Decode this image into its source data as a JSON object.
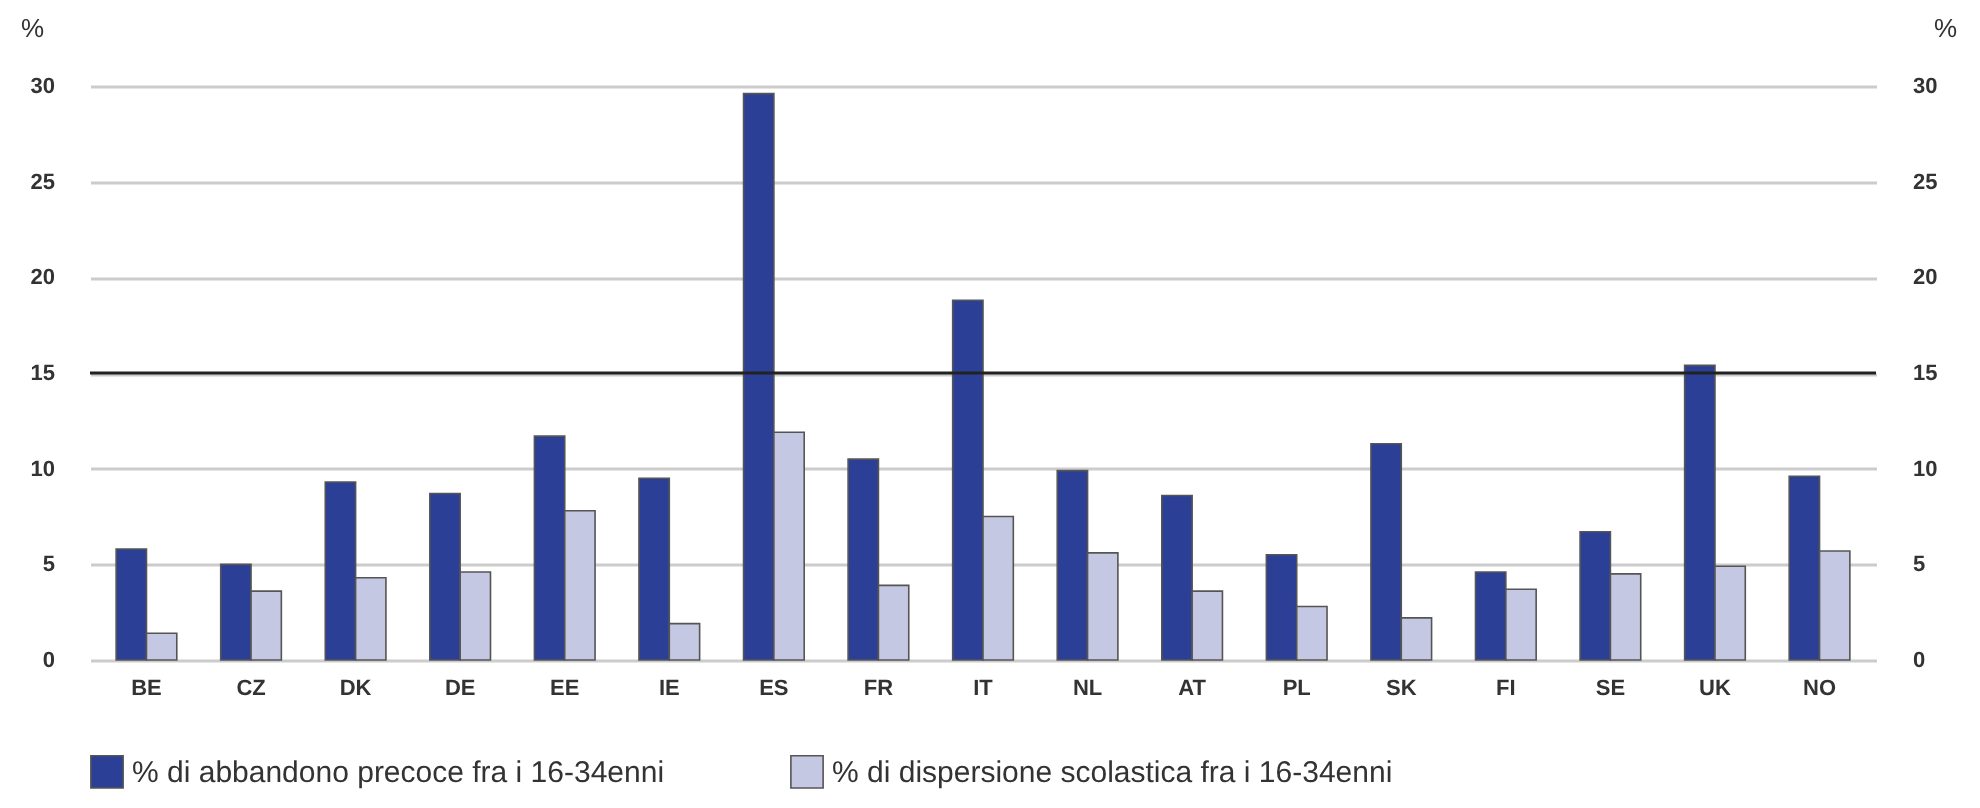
{
  "chart_data": {
    "type": "bar",
    "ylabel": "%",
    "y2label": "%",
    "categories": [
      "BE",
      "CZ",
      "DK",
      "DE",
      "EE",
      "IE",
      "ES",
      "FR",
      "IT",
      "NL",
      "AT",
      "PL",
      "SK",
      "FI",
      "SE",
      "UK",
      "NO"
    ],
    "series": [
      {
        "name": "% di abbandono precoce fra i 16-34enni",
        "color": "#2b3f96",
        "values": [
          5.8,
          5.0,
          9.3,
          8.7,
          11.7,
          9.5,
          29.6,
          10.5,
          18.8,
          9.9,
          8.6,
          5.5,
          11.3,
          4.6,
          6.7,
          15.4,
          9.6
        ]
      },
      {
        "name": "% di dispersione scolastica fra i 16-34enni",
        "color": "#c5c8e2",
        "values": [
          1.4,
          3.6,
          4.3,
          4.6,
          7.8,
          1.9,
          11.9,
          3.9,
          7.5,
          5.6,
          3.6,
          2.8,
          2.2,
          3.7,
          4.5,
          4.9,
          5.7
        ]
      }
    ],
    "ylim": [
      0,
      30
    ],
    "yticks": [
      0,
      5,
      10,
      15,
      20,
      25,
      30
    ],
    "y2lim": [
      0,
      30
    ],
    "y2ticks": [
      0,
      5,
      10,
      15,
      20,
      25,
      30
    ],
    "ref_lines": [
      {
        "axis": "y",
        "value": 15,
        "color": "#222222"
      }
    ],
    "grid": "y",
    "legend": "bottom"
  }
}
